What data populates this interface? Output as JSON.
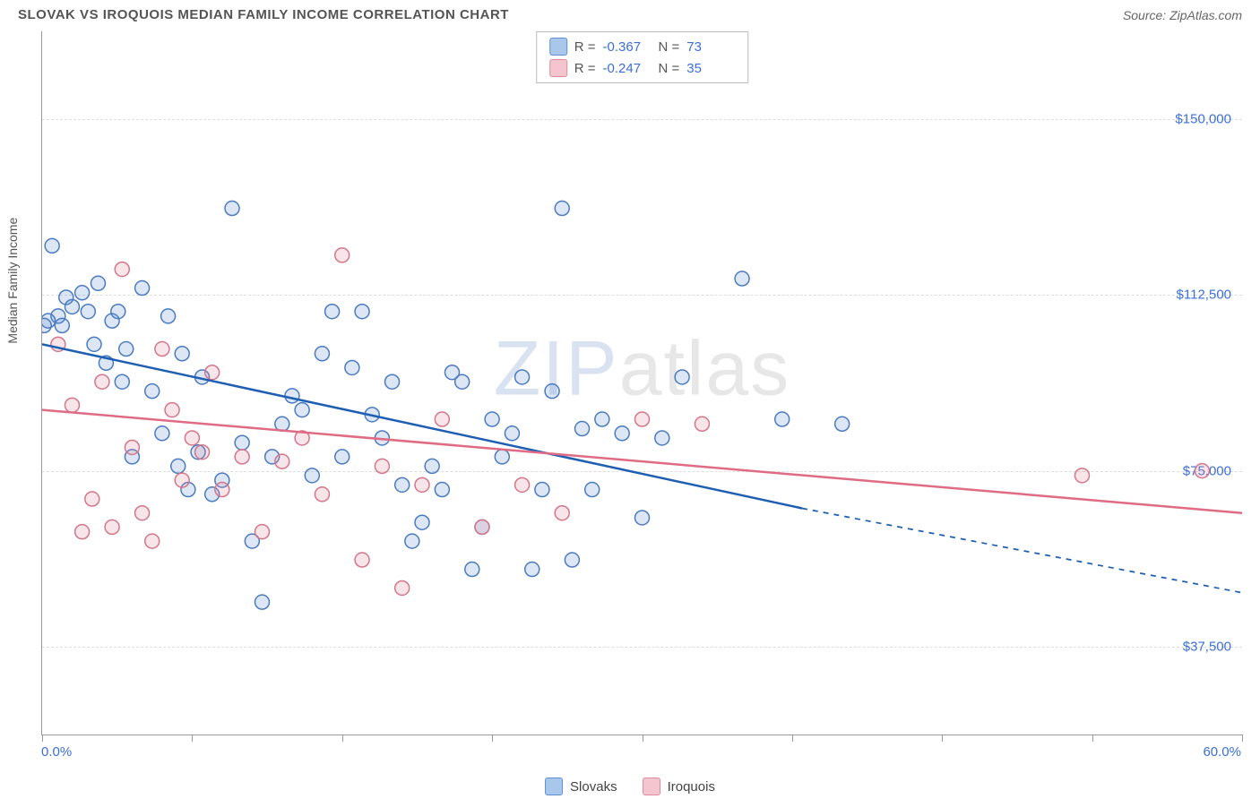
{
  "header": {
    "title": "SLOVAK VS IROQUOIS MEDIAN FAMILY INCOME CORRELATION CHART",
    "source": "Source: ZipAtlas.com"
  },
  "watermark": {
    "part1": "ZIP",
    "part2": "atlas"
  },
  "chart": {
    "type": "scatter",
    "ylabel": "Median Family Income",
    "xlim": [
      0,
      60
    ],
    "ylim": [
      18750,
      168750
    ],
    "xtick_positions": [
      0,
      7.5,
      15,
      22.5,
      30,
      37.5,
      45,
      52.5,
      60
    ],
    "xtick_labels_shown": {
      "0": "0.0%",
      "60": "60.0%"
    },
    "ytick_positions": [
      37500,
      75000,
      112500,
      150000
    ],
    "ytick_labels": {
      "37500": "$37,500",
      "75000": "$75,000",
      "112500": "$112,500",
      "150000": "$150,000"
    },
    "background_color": "#ffffff",
    "grid_color": "#dddddd",
    "axis_color": "#999999",
    "label_fontsize": 14,
    "tick_fontsize": 15,
    "tick_label_color": "#3b6fd6",
    "marker_radius": 8,
    "marker_stroke_width": 1.5,
    "marker_fill_opacity": 0.22,
    "trend_line_width": 2.5,
    "legend_top": {
      "rows": [
        {
          "color_fill": "#a8c7eb",
          "color_stroke": "#5e8fd0",
          "r_label": "R =",
          "r_value": "-0.367",
          "n_label": "N =",
          "n_value": "73"
        },
        {
          "color_fill": "#f4c5ce",
          "color_stroke": "#e08a9b",
          "r_label": "R =",
          "r_value": "-0.247",
          "n_label": "N =",
          "n_value": "35"
        }
      ]
    },
    "legend_bottom": [
      {
        "label": "Slovaks",
        "fill": "#a8c7eb",
        "stroke": "#5e8fd0"
      },
      {
        "label": "Iroquois",
        "fill": "#f4c5ce",
        "stroke": "#e08a9b"
      }
    ],
    "series": [
      {
        "name": "Slovaks",
        "marker_fill": "#5e8fd0",
        "marker_stroke": "#4a7bc0",
        "trend_color": "#1e5fb3",
        "trend": {
          "x1": 0,
          "y1": 102000,
          "x2_solid": 38,
          "y2_solid": 67000,
          "x2": 60,
          "y2": 49000
        },
        "points": [
          [
            0.5,
            123000
          ],
          [
            0.8,
            108000
          ],
          [
            1.0,
            106000
          ],
          [
            1.2,
            112000
          ],
          [
            1.5,
            110000
          ],
          [
            0.3,
            107000
          ],
          [
            0.1,
            106000
          ],
          [
            2.0,
            113000
          ],
          [
            2.3,
            109000
          ],
          [
            2.6,
            102000
          ],
          [
            2.8,
            115000
          ],
          [
            3.2,
            98000
          ],
          [
            3.5,
            107000
          ],
          [
            3.8,
            109000
          ],
          [
            4.0,
            94000
          ],
          [
            4.2,
            101000
          ],
          [
            4.5,
            78000
          ],
          [
            5.0,
            114000
          ],
          [
            5.5,
            92000
          ],
          [
            6.0,
            83000
          ],
          [
            6.3,
            108000
          ],
          [
            6.8,
            76000
          ],
          [
            7.0,
            100000
          ],
          [
            7.3,
            71000
          ],
          [
            7.8,
            79000
          ],
          [
            8.0,
            95000
          ],
          [
            8.5,
            70000
          ],
          [
            9.0,
            73000
          ],
          [
            9.5,
            131000
          ],
          [
            10.0,
            81000
          ],
          [
            10.5,
            60000
          ],
          [
            11.0,
            47000
          ],
          [
            11.5,
            78000
          ],
          [
            12.0,
            85000
          ],
          [
            12.5,
            91000
          ],
          [
            13.0,
            88000
          ],
          [
            13.5,
            74000
          ],
          [
            14.0,
            100000
          ],
          [
            14.5,
            109000
          ],
          [
            15.0,
            78000
          ],
          [
            15.5,
            97000
          ],
          [
            16.0,
            109000
          ],
          [
            16.5,
            87000
          ],
          [
            17.0,
            82000
          ],
          [
            17.5,
            94000
          ],
          [
            18.0,
            72000
          ],
          [
            18.5,
            60000
          ],
          [
            19.0,
            64000
          ],
          [
            19.5,
            76000
          ],
          [
            20.0,
            71000
          ],
          [
            20.5,
            96000
          ],
          [
            21.0,
            94000
          ],
          [
            21.5,
            54000
          ],
          [
            22.0,
            63000
          ],
          [
            22.5,
            86000
          ],
          [
            23.0,
            78000
          ],
          [
            23.5,
            83000
          ],
          [
            24.0,
            95000
          ],
          [
            24.5,
            54000
          ],
          [
            25.0,
            71000
          ],
          [
            25.5,
            92000
          ],
          [
            26.0,
            131000
          ],
          [
            26.5,
            56000
          ],
          [
            27.0,
            84000
          ],
          [
            27.5,
            71000
          ],
          [
            28.0,
            86000
          ],
          [
            29.0,
            83000
          ],
          [
            30.0,
            65000
          ],
          [
            31.0,
            82000
          ],
          [
            32.0,
            95000
          ],
          [
            35.0,
            116000
          ],
          [
            37.0,
            86000
          ],
          [
            40.0,
            85000
          ]
        ]
      },
      {
        "name": "Iroquois",
        "marker_fill": "#e08a9b",
        "marker_stroke": "#d4758a",
        "trend_color": "#e06b84",
        "trend": {
          "x1": 0,
          "y1": 88000,
          "x2_solid": 60,
          "y2_solid": 66000,
          "x2": 60,
          "y2": 66000
        },
        "points": [
          [
            0.8,
            102000
          ],
          [
            1.5,
            89000
          ],
          [
            2.0,
            62000
          ],
          [
            2.5,
            69000
          ],
          [
            3.0,
            94000
          ],
          [
            3.5,
            63000
          ],
          [
            4.0,
            118000
          ],
          [
            4.5,
            80000
          ],
          [
            5.0,
            66000
          ],
          [
            5.5,
            60000
          ],
          [
            6.0,
            101000
          ],
          [
            6.5,
            88000
          ],
          [
            7.0,
            73000
          ],
          [
            7.5,
            82000
          ],
          [
            8.0,
            79000
          ],
          [
            8.5,
            96000
          ],
          [
            9.0,
            71000
          ],
          [
            10.0,
            78000
          ],
          [
            11.0,
            62000
          ],
          [
            12.0,
            77000
          ],
          [
            13.0,
            82000
          ],
          [
            14.0,
            70000
          ],
          [
            15.0,
            121000
          ],
          [
            16.0,
            56000
          ],
          [
            17.0,
            76000
          ],
          [
            18.0,
            50000
          ],
          [
            19.0,
            72000
          ],
          [
            20.0,
            86000
          ],
          [
            22.0,
            63000
          ],
          [
            24.0,
            72000
          ],
          [
            26.0,
            66000
          ],
          [
            30.0,
            86000
          ],
          [
            33.0,
            85000
          ],
          [
            52.0,
            74000
          ],
          [
            58.0,
            75000
          ]
        ]
      }
    ]
  }
}
